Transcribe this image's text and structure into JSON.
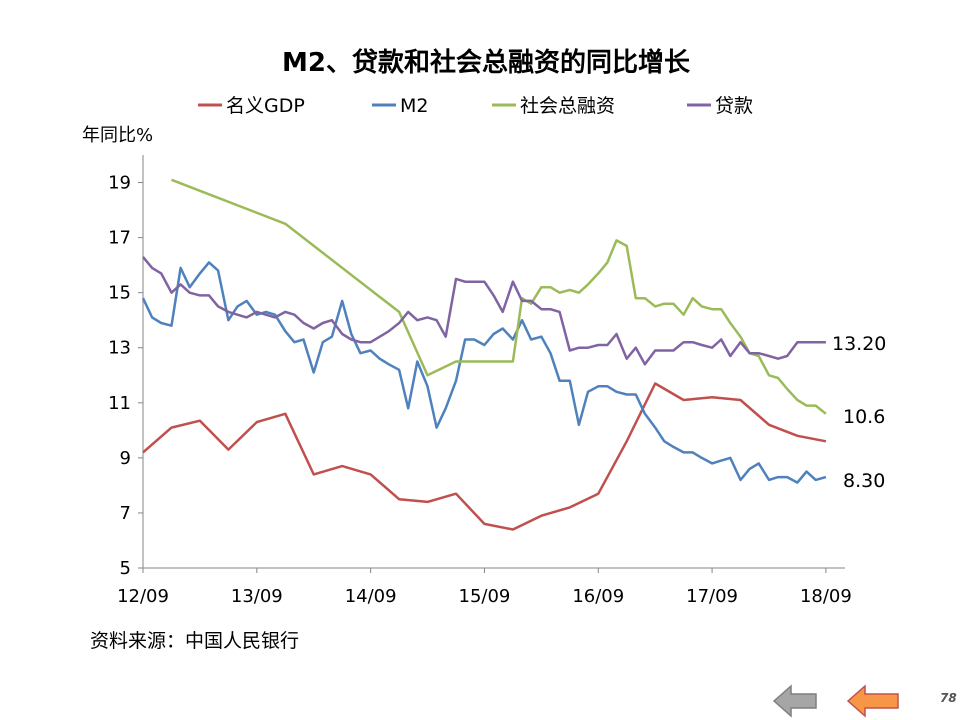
{
  "chart_data": {
    "type": "line",
    "title": "M2、贷款和社会总融资的同比增长",
    "ylabel": "年同比%",
    "ylim": [
      5,
      20
    ],
    "yticks": [
      "5",
      "7",
      "9",
      "11",
      "13",
      "15",
      "17",
      "19"
    ],
    "xlim": [
      2012.67,
      2018.75
    ],
    "xticks": [
      {
        "label": "12/09",
        "value": 2012.67
      },
      {
        "label": "13/09",
        "value": 2013.67
      },
      {
        "label": "14/09",
        "value": 2014.67
      },
      {
        "label": "15/09",
        "value": 2015.67
      },
      {
        "label": "16/09",
        "value": 2016.67
      },
      {
        "label": "17/09",
        "value": 2017.67
      },
      {
        "label": "18/09",
        "value": 2018.67
      }
    ],
    "legend": {
      "position": "top"
    },
    "series": [
      {
        "name": "名义GDP",
        "color": "#C0504D",
        "x": [
          2012.67,
          2012.92,
          2013.17,
          2013.42,
          2013.67,
          2013.92,
          2014.17,
          2014.42,
          2014.67,
          2014.92,
          2015.17,
          2015.42,
          2015.67,
          2015.92,
          2016.17,
          2016.42,
          2016.67,
          2016.92,
          2017.17,
          2017.42,
          2017.67,
          2017.92,
          2018.17,
          2018.42,
          2018.67
        ],
        "y": [
          9.2,
          10.1,
          10.35,
          9.3,
          10.3,
          10.6,
          8.4,
          8.7,
          8.4,
          7.5,
          7.4,
          7.7,
          6.6,
          6.4,
          6.9,
          7.2,
          7.7,
          9.6,
          11.7,
          11.1,
          11.2,
          11.1,
          10.2,
          9.8,
          9.6
        ]
      },
      {
        "name": "M2",
        "color": "#4F81BD",
        "x": [
          2012.67,
          2012.75,
          2012.83,
          2012.92,
          2013.0,
          2013.08,
          2013.17,
          2013.25,
          2013.33,
          2013.42,
          2013.5,
          2013.58,
          2013.67,
          2013.75,
          2013.83,
          2013.92,
          2014.0,
          2014.08,
          2014.17,
          2014.25,
          2014.33,
          2014.42,
          2014.5,
          2014.58,
          2014.67,
          2014.75,
          2014.83,
          2014.92,
          2015.0,
          2015.08,
          2015.17,
          2015.25,
          2015.33,
          2015.42,
          2015.5,
          2015.58,
          2015.67,
          2015.75,
          2015.83,
          2015.92,
          2016.0,
          2016.08,
          2016.17,
          2016.25,
          2016.33,
          2016.42,
          2016.5,
          2016.58,
          2016.67,
          2016.75,
          2016.83,
          2016.92,
          2017.0,
          2017.08,
          2017.17,
          2017.25,
          2017.33,
          2017.42,
          2017.5,
          2017.58,
          2017.67,
          2017.75,
          2017.83,
          2017.92,
          2018.0,
          2018.08,
          2018.17,
          2018.25,
          2018.33,
          2018.42,
          2018.5,
          2018.58,
          2018.67
        ],
        "y": [
          14.8,
          14.1,
          13.9,
          13.8,
          15.9,
          15.2,
          15.7,
          16.1,
          15.8,
          14.0,
          14.5,
          14.7,
          14.2,
          14.3,
          14.2,
          13.6,
          13.2,
          13.3,
          12.1,
          13.2,
          13.4,
          14.7,
          13.5,
          12.8,
          12.9,
          12.6,
          12.4,
          12.2,
          10.8,
          12.5,
          11.6,
          10.1,
          10.8,
          11.8,
          13.3,
          13.3,
          13.1,
          13.5,
          13.7,
          13.3,
          14.0,
          13.3,
          13.4,
          12.8,
          11.8,
          11.8,
          10.2,
          11.4,
          11.6,
          11.6,
          11.4,
          11.3,
          11.3,
          10.6,
          10.1,
          9.6,
          9.4,
          9.2,
          9.2,
          9.0,
          8.8,
          8.9,
          9.0,
          8.2,
          8.6,
          8.8,
          8.2,
          8.3,
          8.3,
          8.1,
          8.5,
          8.2,
          8.3
        ]
      },
      {
        "name": "社会总融资",
        "color": "#9BBB59",
        "x": [
          2012.92,
          2013.92,
          2014.92,
          2015.17,
          2015.42,
          2015.67,
          2015.92,
          2016.0,
          2016.08,
          2016.17,
          2016.25,
          2016.33,
          2016.42,
          2016.5,
          2016.58,
          2016.67,
          2016.75,
          2016.83,
          2016.92,
          2017.0,
          2017.08,
          2017.17,
          2017.25,
          2017.33,
          2017.42,
          2017.5,
          2017.58,
          2017.67,
          2017.75,
          2017.83,
          2017.92,
          2018.0,
          2018.08,
          2018.17,
          2018.25,
          2018.33,
          2018.42,
          2018.5,
          2018.58,
          2018.67
        ],
        "y": [
          19.1,
          17.5,
          14.3,
          12.0,
          12.5,
          12.5,
          12.5,
          14.8,
          14.6,
          15.2,
          15.2,
          15.0,
          15.1,
          15.0,
          15.3,
          15.7,
          16.1,
          16.9,
          16.7,
          14.8,
          14.8,
          14.5,
          14.6,
          14.6,
          14.2,
          14.8,
          14.5,
          14.4,
          14.4,
          13.9,
          13.4,
          12.8,
          12.7,
          12.0,
          11.9,
          11.5,
          11.1,
          10.9,
          10.9,
          10.6
        ]
      },
      {
        "name": "贷款",
        "color": "#8064A2",
        "x": [
          2012.67,
          2012.75,
          2012.83,
          2012.92,
          2013.0,
          2013.08,
          2013.17,
          2013.25,
          2013.33,
          2013.42,
          2013.5,
          2013.58,
          2013.67,
          2013.75,
          2013.83,
          2013.92,
          2014.0,
          2014.08,
          2014.17,
          2014.25,
          2014.33,
          2014.42,
          2014.5,
          2014.58,
          2014.67,
          2014.75,
          2014.83,
          2014.92,
          2015.0,
          2015.08,
          2015.17,
          2015.25,
          2015.33,
          2015.42,
          2015.5,
          2015.58,
          2015.67,
          2015.75,
          2015.83,
          2015.92,
          2016.0,
          2016.08,
          2016.17,
          2016.25,
          2016.33,
          2016.42,
          2016.5,
          2016.58,
          2016.67,
          2016.75,
          2016.83,
          2016.92,
          2017.0,
          2017.08,
          2017.17,
          2017.25,
          2017.33,
          2017.42,
          2017.5,
          2017.58,
          2017.67,
          2017.75,
          2017.83,
          2017.92,
          2018.0,
          2018.08,
          2018.17,
          2018.25,
          2018.33,
          2018.42,
          2018.5,
          2018.58,
          2018.67
        ],
        "y": [
          16.3,
          15.9,
          15.7,
          15.0,
          15.3,
          15.0,
          14.9,
          14.9,
          14.5,
          14.3,
          14.2,
          14.1,
          14.3,
          14.2,
          14.1,
          14.3,
          14.2,
          13.9,
          13.7,
          13.9,
          14.0,
          13.5,
          13.3,
          13.2,
          13.2,
          13.4,
          13.6,
          13.9,
          14.3,
          14.0,
          14.1,
          14.0,
          13.4,
          15.5,
          15.4,
          15.4,
          15.4,
          14.9,
          14.3,
          15.4,
          14.7,
          14.7,
          14.4,
          14.4,
          14.3,
          12.9,
          13.0,
          13.0,
          13.1,
          13.1,
          13.5,
          12.6,
          13.0,
          12.4,
          12.9,
          12.9,
          12.9,
          13.2,
          13.2,
          13.1,
          13.0,
          13.3,
          12.7,
          13.2,
          12.8,
          12.8,
          12.7,
          12.6,
          12.7,
          13.2,
          13.2,
          13.2,
          13.2
        ]
      }
    ],
    "annotations": [
      {
        "text": "13.20",
        "series": "贷款"
      },
      {
        "text": "10.6",
        "series": "社会总融资"
      },
      {
        "text": "8.30",
        "series": "M2"
      }
    ]
  },
  "source_text": "资料来源：中国人民银行",
  "page_number": "78",
  "nav": {
    "prev_icon": "left-arrow-icon",
    "next_icon": "left-arrow-icon",
    "prev_color": "#A6A6A6",
    "next_color": "#F79646"
  }
}
